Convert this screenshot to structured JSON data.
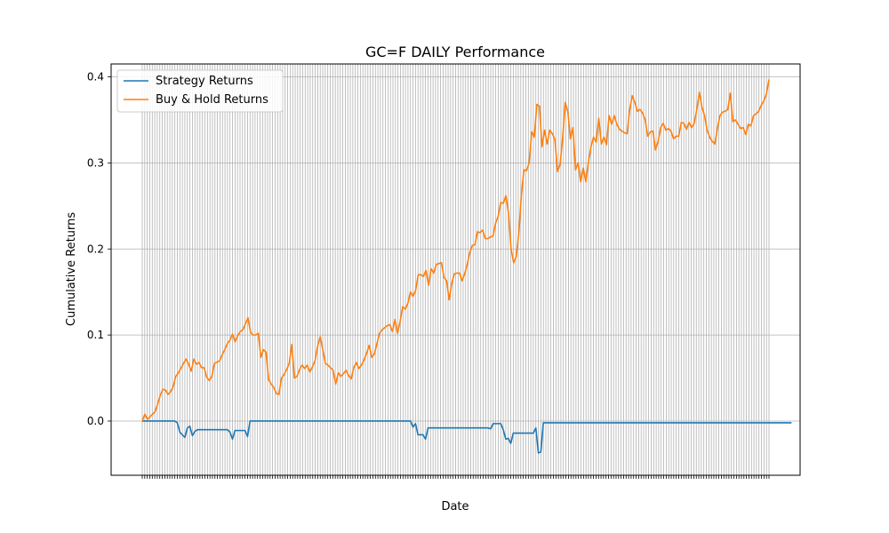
{
  "chart_data": {
    "type": "line",
    "title": "GC=F DAILY Performance",
    "xlabel": "Date",
    "ylabel": "Cumulative Returns",
    "ylim": [
      -0.063,
      0.415
    ],
    "yticks": [
      0.0,
      0.1,
      0.2,
      0.3,
      0.4
    ],
    "ytick_labels": [
      "0.0",
      "0.1",
      "0.2",
      "0.3",
      "0.4"
    ],
    "grid": true,
    "legend_position": "upper-left",
    "x_count": 251,
    "series": [
      {
        "name": "Strategy Returns",
        "color": "#1f77b4",
        "values": [
          0,
          0,
          0,
          0,
          0,
          0,
          0,
          0,
          0,
          0,
          0,
          0,
          0,
          0,
          -0.002,
          -0.013,
          -0.016,
          -0.019,
          -0.008,
          -0.006,
          -0.017,
          -0.012,
          -0.01,
          -0.01,
          -0.01,
          -0.01,
          -0.01,
          -0.01,
          -0.01,
          -0.01,
          -0.01,
          -0.01,
          -0.01,
          -0.01,
          -0.01,
          -0.013,
          -0.021,
          -0.011,
          -0.011,
          -0.011,
          -0.011,
          -0.011,
          -0.018,
          0,
          0,
          0,
          0,
          0,
          0,
          0,
          0,
          0,
          0,
          0,
          0,
          0,
          0,
          0,
          0,
          0,
          0,
          0,
          0,
          0,
          0,
          0,
          0,
          0,
          0,
          0,
          0,
          0,
          0,
          0,
          0,
          0,
          0,
          0,
          0,
          0,
          0,
          0,
          0,
          0,
          0,
          0,
          0,
          0,
          0,
          0,
          0,
          0,
          0,
          0,
          0,
          0,
          0,
          0,
          0,
          0,
          0,
          0,
          0,
          0,
          0,
          0,
          0,
          0,
          -0.007,
          -0.003,
          -0.016,
          -0.016,
          -0.016,
          -0.021,
          -0.008,
          -0.008,
          -0.008,
          -0.008,
          -0.008,
          -0.008,
          -0.008,
          -0.008,
          -0.008,
          -0.008,
          -0.008,
          -0.008,
          -0.008,
          -0.008,
          -0.008,
          -0.008,
          -0.008,
          -0.008,
          -0.008,
          -0.008,
          -0.008,
          -0.008,
          -0.008,
          -0.008,
          -0.008,
          -0.009,
          -0.003,
          -0.003,
          -0.003,
          -0.003,
          -0.01,
          -0.021,
          -0.02,
          -0.026,
          -0.014,
          -0.014,
          -0.014,
          -0.014,
          -0.014,
          -0.014,
          -0.014,
          -0.014,
          -0.014,
          -0.008,
          -0.037,
          -0.036,
          -0.002,
          -0.002,
          -0.002,
          -0.002,
          -0.002,
          -0.002,
          -0.002,
          -0.002,
          -0.002,
          -0.002,
          -0.002,
          -0.002,
          -0.002,
          -0.002,
          -0.002,
          -0.002,
          -0.002,
          -0.002,
          -0.002,
          -0.002,
          -0.002,
          -0.002,
          -0.002,
          -0.002,
          -0.002,
          -0.002,
          -0.002,
          -0.002,
          -0.002,
          -0.002,
          -0.002,
          -0.002,
          -0.002,
          -0.002,
          -0.002,
          -0.002,
          -0.002,
          -0.002,
          -0.002,
          -0.002,
          -0.002,
          -0.002,
          -0.002,
          -0.002,
          -0.002,
          -0.002,
          -0.002,
          -0.002,
          -0.002,
          -0.002,
          -0.002,
          -0.002,
          -0.002,
          -0.002,
          -0.002,
          -0.002,
          -0.002,
          -0.002,
          -0.002,
          -0.002,
          -0.002,
          -0.002,
          -0.002,
          -0.002,
          -0.002,
          -0.002,
          -0.002,
          -0.002,
          -0.002,
          -0.002,
          -0.002,
          -0.002,
          -0.002,
          -0.002,
          -0.002,
          -0.002,
          -0.002,
          -0.002,
          -0.002,
          -0.002,
          -0.002,
          -0.002,
          -0.002,
          -0.002,
          -0.002,
          -0.002,
          -0.002,
          -0.002,
          -0.002,
          -0.002,
          -0.002,
          -0.002,
          -0.002,
          -0.002,
          -0.002,
          -0.002,
          -0.002,
          -0.002,
          -0.002,
          -0.002
        ]
      },
      {
        "name": "Buy & Hold Returns",
        "color": "#ff7f0e",
        "anchors": [
          [
            0,
            0.0
          ],
          [
            1,
            0.008
          ],
          [
            2,
            0.002
          ],
          [
            3,
            0.005
          ],
          [
            5,
            0.011
          ],
          [
            6,
            0.02
          ],
          [
            7,
            0.03
          ],
          [
            8,
            0.037
          ],
          [
            9,
            0.036
          ],
          [
            10,
            0.031
          ],
          [
            11,
            0.034
          ],
          [
            12,
            0.04
          ],
          [
            13,
            0.052
          ],
          [
            14,
            0.056
          ],
          [
            16,
            0.067
          ],
          [
            17,
            0.072
          ],
          [
            18,
            0.066
          ],
          [
            19,
            0.058
          ],
          [
            20,
            0.072
          ],
          [
            21,
            0.066
          ],
          [
            22,
            0.068
          ],
          [
            23,
            0.062
          ],
          [
            24,
            0.062
          ],
          [
            25,
            0.051
          ],
          [
            26,
            0.047
          ],
          [
            27,
            0.052
          ],
          [
            28,
            0.067
          ],
          [
            30,
            0.07
          ],
          [
            31,
            0.077
          ],
          [
            32,
            0.083
          ],
          [
            33,
            0.09
          ],
          [
            34,
            0.094
          ],
          [
            35,
            0.101
          ],
          [
            36,
            0.092
          ],
          [
            37,
            0.099
          ],
          [
            38,
            0.104
          ],
          [
            39,
            0.106
          ],
          [
            40,
            0.113
          ],
          [
            41,
            0.12
          ],
          [
            42,
            0.103
          ],
          [
            43,
            0.1
          ],
          [
            44,
            0.1
          ],
          [
            45,
            0.102
          ],
          [
            46,
            0.074
          ],
          [
            47,
            0.083
          ],
          [
            48,
            0.08
          ],
          [
            49,
            0.048
          ],
          [
            50,
            0.043
          ],
          [
            51,
            0.039
          ],
          [
            52,
            0.032
          ],
          [
            53,
            0.031
          ],
          [
            54,
            0.05
          ],
          [
            55,
            0.054
          ],
          [
            56,
            0.06
          ],
          [
            57,
            0.067
          ],
          [
            58,
            0.089
          ],
          [
            59,
            0.05
          ],
          [
            60,
            0.052
          ],
          [
            61,
            0.06
          ],
          [
            62,
            0.065
          ],
          [
            63,
            0.061
          ],
          [
            64,
            0.065
          ],
          [
            65,
            0.057
          ],
          [
            66,
            0.063
          ],
          [
            67,
            0.07
          ],
          [
            68,
            0.087
          ],
          [
            69,
            0.098
          ],
          [
            70,
            0.083
          ],
          [
            71,
            0.067
          ],
          [
            72,
            0.065
          ],
          [
            73,
            0.062
          ],
          [
            74,
            0.059
          ],
          [
            75,
            0.043
          ],
          [
            76,
            0.056
          ],
          [
            77,
            0.052
          ],
          [
            78,
            0.055
          ],
          [
            79,
            0.059
          ],
          [
            80,
            0.053
          ],
          [
            81,
            0.049
          ],
          [
            82,
            0.062
          ],
          [
            83,
            0.068
          ],
          [
            84,
            0.061
          ],
          [
            85,
            0.065
          ],
          [
            86,
            0.071
          ],
          [
            87,
            0.079
          ],
          [
            88,
            0.088
          ],
          [
            89,
            0.074
          ],
          [
            90,
            0.078
          ],
          [
            91,
            0.09
          ],
          [
            92,
            0.102
          ],
          [
            93,
            0.106
          ],
          [
            95,
            0.111
          ],
          [
            96,
            0.112
          ],
          [
            97,
            0.104
          ],
          [
            98,
            0.118
          ],
          [
            99,
            0.102
          ],
          [
            100,
            0.116
          ],
          [
            101,
            0.133
          ],
          [
            102,
            0.13
          ],
          [
            103,
            0.137
          ],
          [
            104,
            0.15
          ],
          [
            105,
            0.145
          ],
          [
            106,
            0.152
          ],
          [
            107,
            0.17
          ],
          [
            108,
            0.17
          ],
          [
            109,
            0.168
          ],
          [
            110,
            0.175
          ],
          [
            111,
            0.158
          ],
          [
            112,
            0.177
          ],
          [
            113,
            0.172
          ],
          [
            114,
            0.182
          ],
          [
            116,
            0.184
          ],
          [
            117,
            0.167
          ],
          [
            118,
            0.163
          ],
          [
            119,
            0.141
          ],
          [
            120,
            0.16
          ],
          [
            121,
            0.171
          ],
          [
            122,
            0.172
          ],
          [
            123,
            0.172
          ],
          [
            124,
            0.163
          ],
          [
            125,
            0.171
          ],
          [
            126,
            0.182
          ],
          [
            127,
            0.196
          ],
          [
            128,
            0.204
          ],
          [
            129,
            0.205
          ],
          [
            130,
            0.22
          ],
          [
            131,
            0.219
          ],
          [
            132,
            0.222
          ],
          [
            133,
            0.212
          ],
          [
            134,
            0.212
          ],
          [
            135,
            0.214
          ],
          [
            136,
            0.215
          ],
          [
            137,
            0.23
          ],
          [
            138,
            0.238
          ],
          [
            139,
            0.254
          ],
          [
            140,
            0.253
          ],
          [
            141,
            0.262
          ],
          [
            142,
            0.242
          ],
          [
            143,
            0.2
          ],
          [
            144,
            0.184
          ],
          [
            145,
            0.191
          ],
          [
            146,
            0.218
          ],
          [
            147,
            0.263
          ],
          [
            148,
            0.292
          ],
          [
            149,
            0.291
          ],
          [
            150,
            0.3
          ],
          [
            151,
            0.336
          ],
          [
            152,
            0.33
          ],
          [
            153,
            0.368
          ],
          [
            154,
            0.366
          ],
          [
            155,
            0.319
          ],
          [
            156,
            0.338
          ],
          [
            157,
            0.322
          ],
          [
            158,
            0.338
          ],
          [
            159,
            0.334
          ],
          [
            160,
            0.327
          ],
          [
            161,
            0.29
          ],
          [
            162,
            0.298
          ],
          [
            163,
            0.329
          ],
          [
            164,
            0.37
          ],
          [
            165,
            0.36
          ],
          [
            166,
            0.328
          ],
          [
            167,
            0.341
          ],
          [
            168,
            0.292
          ],
          [
            169,
            0.3
          ],
          [
            170,
            0.278
          ],
          [
            171,
            0.294
          ],
          [
            172,
            0.278
          ],
          [
            173,
            0.301
          ],
          [
            174,
            0.319
          ],
          [
            175,
            0.33
          ],
          [
            176,
            0.324
          ],
          [
            177,
            0.352
          ],
          [
            178,
            0.322
          ],
          [
            179,
            0.33
          ],
          [
            180,
            0.321
          ],
          [
            181,
            0.355
          ],
          [
            182,
            0.345
          ],
          [
            183,
            0.355
          ],
          [
            184,
            0.345
          ],
          [
            185,
            0.339
          ],
          [
            186,
            0.337
          ],
          [
            187,
            0.335
          ],
          [
            188,
            0.334
          ],
          [
            189,
            0.362
          ],
          [
            190,
            0.378
          ],
          [
            191,
            0.37
          ],
          [
            192,
            0.36
          ],
          [
            193,
            0.362
          ],
          [
            194,
            0.358
          ],
          [
            195,
            0.35
          ],
          [
            196,
            0.331
          ],
          [
            197,
            0.336
          ],
          [
            198,
            0.337
          ],
          [
            199,
            0.315
          ],
          [
            200,
            0.325
          ],
          [
            201,
            0.341
          ],
          [
            202,
            0.346
          ],
          [
            203,
            0.338
          ],
          [
            204,
            0.34
          ],
          [
            205,
            0.337
          ],
          [
            206,
            0.328
          ],
          [
            207,
            0.331
          ],
          [
            208,
            0.331
          ],
          [
            209,
            0.347
          ],
          [
            210,
            0.346
          ],
          [
            211,
            0.339
          ],
          [
            212,
            0.347
          ],
          [
            213,
            0.341
          ],
          [
            214,
            0.346
          ],
          [
            215,
            0.362
          ],
          [
            216,
            0.382
          ],
          [
            217,
            0.365
          ],
          [
            218,
            0.355
          ],
          [
            219,
            0.338
          ],
          [
            220,
            0.33
          ],
          [
            221,
            0.325
          ],
          [
            222,
            0.322
          ],
          [
            223,
            0.34
          ],
          [
            224,
            0.355
          ],
          [
            225,
            0.359
          ],
          [
            226,
            0.36
          ],
          [
            227,
            0.362
          ],
          [
            228,
            0.381
          ],
          [
            229,
            0.348
          ],
          [
            230,
            0.35
          ],
          [
            231,
            0.345
          ],
          [
            232,
            0.34
          ],
          [
            233,
            0.341
          ],
          [
            234,
            0.333
          ],
          [
            235,
            0.345
          ],
          [
            236,
            0.343
          ],
          [
            237,
            0.355
          ],
          [
            238,
            0.357
          ],
          [
            239,
            0.36
          ],
          [
            240,
            0.367
          ],
          [
            241,
            0.372
          ],
          [
            242,
            0.38
          ],
          [
            243,
            0.397
          ]
        ]
      }
    ]
  }
}
